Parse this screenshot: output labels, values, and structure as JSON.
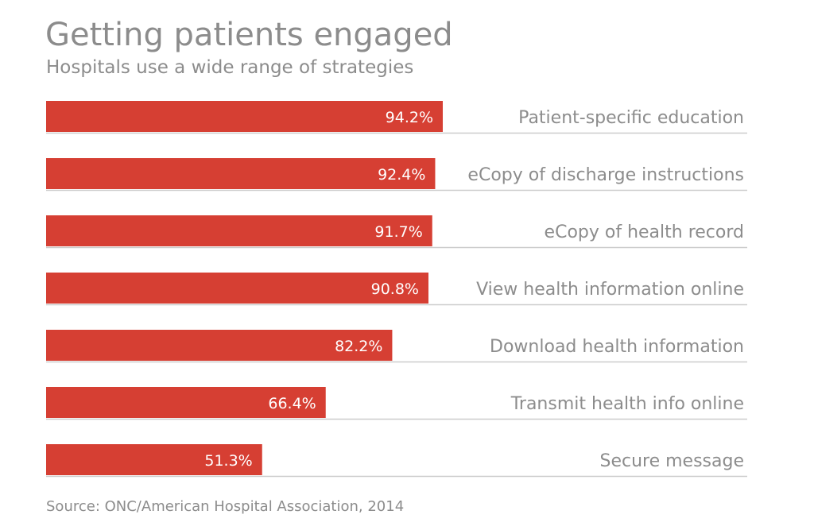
{
  "chart_data": {
    "type": "bar",
    "orientation": "horizontal",
    "title": "Getting patients engaged",
    "subtitle": "Hospitals use a wide range of strategies",
    "source": "Source: ONC/American Hospital Association, 2014",
    "categories": [
      "Patient-specific education",
      "eCopy of discharge instructions",
      "eCopy of health record",
      "View health information online",
      "Download health information",
      "Transmit health info online",
      "Secure message"
    ],
    "values": [
      94.2,
      92.4,
      91.7,
      90.8,
      82.2,
      66.4,
      51.3
    ],
    "value_labels": [
      "94.2%",
      "92.4%",
      "91.7%",
      "90.8%",
      "82.2%",
      "66.4%",
      "51.3%"
    ],
    "xlim": [
      0,
      100
    ],
    "grid": false,
    "colors": {
      "bar": "#d63f33",
      "text": "#8c8c8c",
      "value_text": "#ffffff",
      "rule": "#cccccc"
    }
  }
}
